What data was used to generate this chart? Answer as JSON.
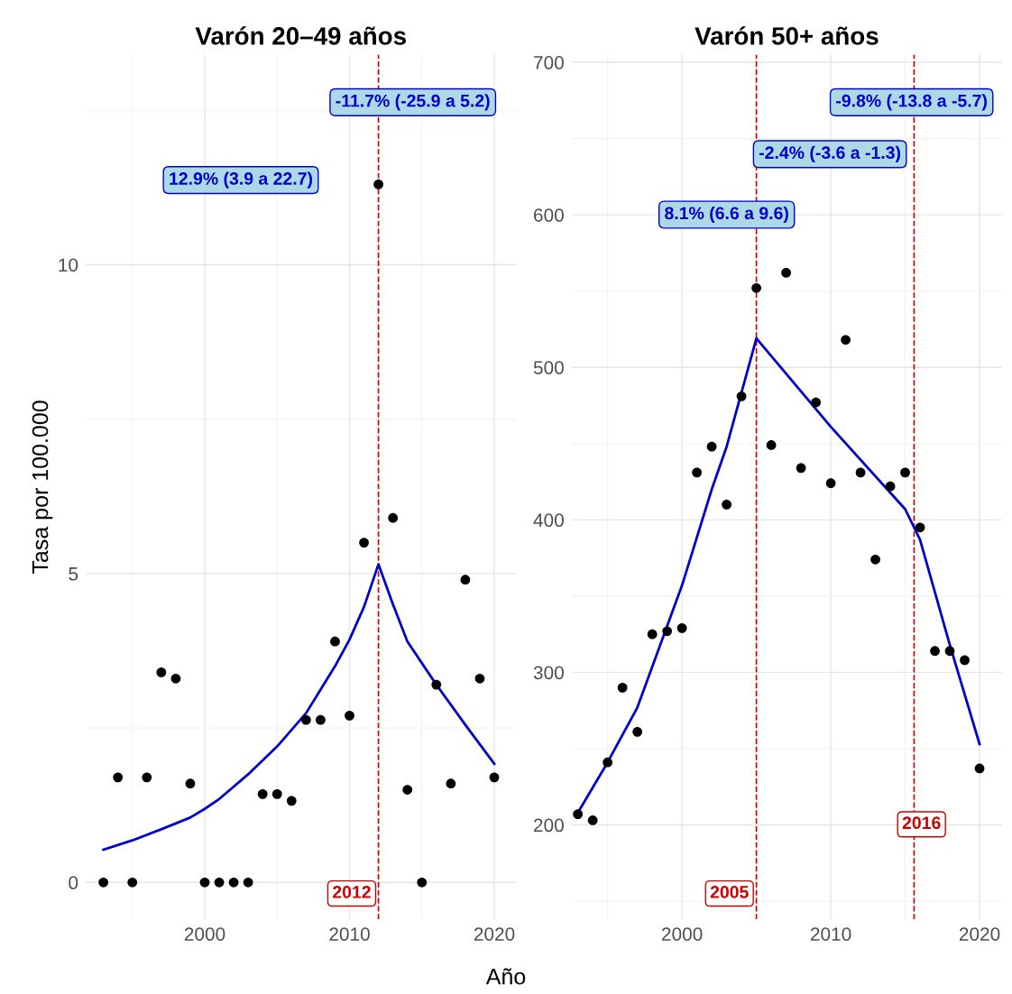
{
  "chart_data": [
    {
      "type": "scatter",
      "title": "Varón 20–49 años",
      "xlabel": "Año",
      "ylabel": "Tasa por 100.000",
      "series": [
        {
          "marker": "circle",
          "color": "#000000",
          "x": [
            1993,
            1994,
            1995,
            1996,
            1997,
            1998,
            1999,
            2000,
            2001,
            2002,
            2003,
            2004,
            2005,
            2006,
            2007,
            2008,
            2009,
            2010,
            2011,
            2012,
            2013,
            2014,
            2015,
            2016,
            2017,
            2018,
            2019,
            2020
          ],
          "values": [
            0,
            1.7,
            0,
            1.7,
            3.4,
            3.3,
            1.6,
            0,
            0,
            0,
            0,
            1.43,
            1.43,
            1.32,
            2.63,
            2.63,
            3.9,
            2.7,
            5.5,
            11.3,
            5.9,
            1.5,
            0,
            3.2,
            1.6,
            4.9,
            3.3,
            1.7
          ]
        },
        {
          "type": "line",
          "color": "#0000cd",
          "x": [
            1993,
            1995,
            1997,
            1999,
            2000,
            2001,
            2003,
            2005,
            2007,
            2009,
            2010,
            2011,
            2012,
            2013,
            2014,
            2016,
            2018,
            2020
          ],
          "values": [
            0.53,
            0.68,
            0.86,
            1.05,
            1.19,
            1.35,
            1.75,
            2.2,
            2.74,
            3.5,
            3.93,
            4.46,
            5.15,
            4.5,
            3.9,
            3.2,
            2.55,
            1.92
          ]
        }
      ],
      "xlim": [
        1991.8,
        2021.5
      ],
      "ylim": [
        -0.6,
        13.4
      ],
      "xticks": [
        2000,
        2010,
        2020
      ],
      "yticks": [
        0,
        5,
        10
      ],
      "grid": true,
      "ref_lines": [
        {
          "axis": "x",
          "value": 2012,
          "label": "2012",
          "color": "#cc0000",
          "line_style": "dashed"
        }
      ],
      "annotations": [
        "12.9% (3.9 a 22.7)",
        "-11.7% (-25.9 a 5.2)"
      ]
    },
    {
      "type": "scatter",
      "title": "Varón 50+ años",
      "series": [
        {
          "marker": "circle",
          "color": "#000000",
          "x": [
            1993,
            1994,
            1995,
            1996,
            1997,
            1998,
            1999,
            2000,
            2001,
            2002,
            2003,
            2004,
            2005,
            2006,
            2007,
            2008,
            2009,
            2010,
            2011,
            2012,
            2013,
            2014,
            2015,
            2016,
            2017,
            2018,
            2019,
            2020
          ],
          "values": [
            207,
            203,
            241,
            290,
            261,
            325,
            327,
            329,
            431,
            448,
            410,
            481,
            552,
            449,
            562,
            434,
            477,
            424,
            518,
            431,
            374,
            422,
            431,
            395,
            314,
            314,
            308,
            237
          ]
        },
        {
          "type": "line",
          "color": "#0000cd",
          "x": [
            1993,
            1995,
            1997,
            2000,
            2002,
            2003,
            2005,
            2010,
            2015,
            2016,
            2018,
            2020
          ],
          "values": [
            208,
            241,
            277,
            357,
            420,
            448,
            519,
            461,
            407,
            387,
            318,
            253
          ]
        }
      ],
      "xlim": [
        1992.6,
        2021.5
      ],
      "ylim": [
        138,
        705
      ],
      "xticks": [
        2000,
        2010,
        2020
      ],
      "yticks": [
        200,
        300,
        400,
        500,
        600,
        700
      ],
      "grid": true,
      "ref_lines": [
        {
          "axis": "x",
          "value": 2005,
          "label": "2005",
          "color": "#cc0000",
          "line_style": "dashed"
        },
        {
          "axis": "x",
          "value": 2015.6,
          "label": "2016",
          "color": "#cc0000",
          "line_style": "dashed"
        }
      ],
      "annotations": [
        "8.1% (6.6 a 9.6)",
        "-2.4% (-3.6 a -1.3)",
        "-9.8% (-13.8 a -5.7)"
      ]
    }
  ]
}
